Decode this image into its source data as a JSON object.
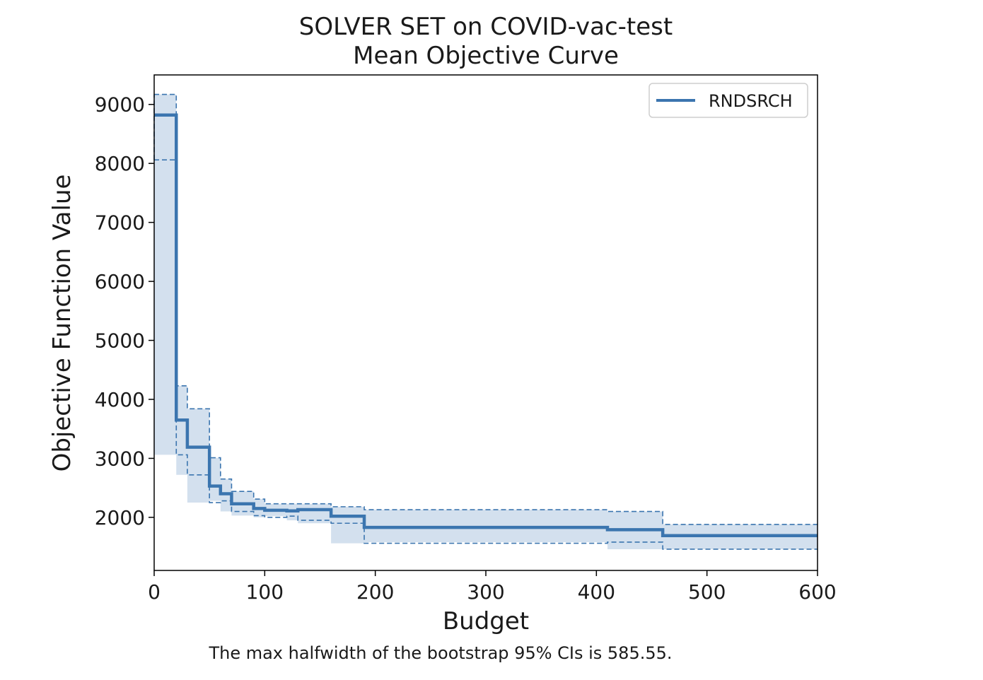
{
  "chart_data": {
    "type": "line",
    "step": true,
    "title_line1": "SOLVER SET on COVID-vac-test",
    "title_line2": "Mean Objective Curve",
    "xlabel": "Budget",
    "ylabel": "Objective Function Value",
    "xlim": [
      0,
      600
    ],
    "ylim": [
      1100,
      9500
    ],
    "xticks": [
      0,
      100,
      200,
      300,
      400,
      500,
      600
    ],
    "yticks": [
      2000,
      3000,
      4000,
      5000,
      6000,
      7000,
      8000,
      9000
    ],
    "grid": false,
    "legend_position": "top-right",
    "series": [
      {
        "name": "RNDSRCH",
        "color": "#3b75af",
        "band_color": "#d3e0ee",
        "x": [
          0,
          20,
          30,
          50,
          60,
          70,
          90,
          100,
          120,
          130,
          160,
          190,
          410,
          460,
          600
        ],
        "mean": [
          8820,
          3650,
          3190,
          2530,
          2400,
          2230,
          2150,
          2120,
          2110,
          2130,
          2020,
          1830,
          1790,
          1690,
          1690
        ],
        "lower": [
          8060,
          3060,
          2720,
          2250,
          2280,
          2100,
          2030,
          2000,
          2020,
          1950,
          1900,
          1560,
          1580,
          1460,
          1460
        ],
        "upper": [
          9170,
          4230,
          3840,
          3010,
          2650,
          2440,
          2310,
          2230,
          2230,
          2230,
          2180,
          2130,
          2100,
          1880,
          1880
        ]
      }
    ]
  },
  "caption": "The max halfwidth of the bootstrap 95% CIs is 585.55."
}
